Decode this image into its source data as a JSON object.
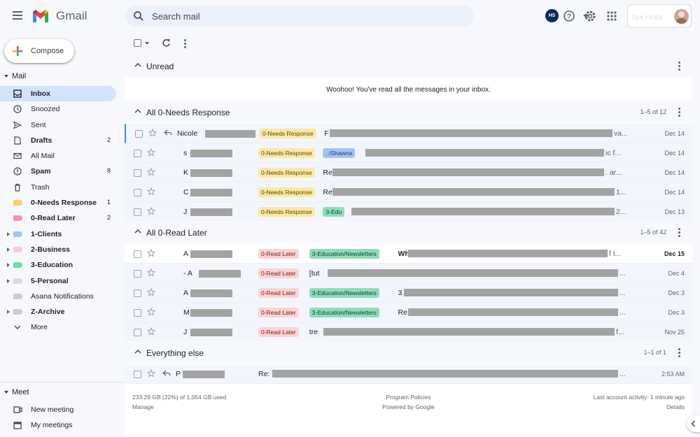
{
  "app": {
    "brand": "Gmail"
  },
  "search": {
    "placeholder": "Search mail",
    "value": ""
  },
  "header": {
    "account_initials": "HS",
    "workspace_logo": "lux+vita"
  },
  "compose": {
    "label": "Compose"
  },
  "sidebar": {
    "mail_section": "Mail",
    "items": [
      {
        "label": "Inbox",
        "count": "",
        "icon": "inbox-icon",
        "bold": true,
        "active": true
      },
      {
        "label": "Snoozed",
        "count": "",
        "icon": "clock-icon"
      },
      {
        "label": "Sent",
        "count": "",
        "icon": "send-icon"
      },
      {
        "label": "Drafts",
        "count": "2",
        "icon": "draft-icon",
        "bold": true
      },
      {
        "label": "All Mail",
        "count": "",
        "icon": "mail-icon"
      },
      {
        "label": "Spam",
        "count": "8",
        "icon": "spam-icon",
        "bold": true
      },
      {
        "label": "Trash",
        "count": "",
        "icon": "trash-icon"
      },
      {
        "label": "0-Needs Response",
        "count": "1",
        "icon": "label-icon",
        "color": "#fad165",
        "bold": true
      },
      {
        "label": "0-Read Later",
        "count": "2",
        "icon": "label-icon",
        "color": "#f691b2",
        "bold": true
      },
      {
        "label": "1-Clients",
        "count": "",
        "icon": "label-icon",
        "color": "#a4c2f4",
        "bold": true,
        "expandable": true
      },
      {
        "label": "2-Business",
        "count": "",
        "icon": "label-icon",
        "color": "#fbc8d9",
        "bold": true,
        "expandable": true
      },
      {
        "label": "3-Education",
        "count": "",
        "icon": "label-icon",
        "color": "#68dfa9",
        "bold": true,
        "expandable": true
      },
      {
        "label": "5-Personal",
        "count": "",
        "icon": "label-icon",
        "color": "#dadada",
        "bold": true,
        "expandable": true
      },
      {
        "label": "Asana Notifications",
        "count": "",
        "icon": "label-icon",
        "color": "#cccccc"
      },
      {
        "label": "Z-Archive",
        "count": "",
        "icon": "label-icon",
        "color": "#cccccc",
        "bold": true,
        "expandable": true
      },
      {
        "label": "More",
        "count": "",
        "icon": "chevron-down-icon"
      }
    ],
    "meet_section": "Meet",
    "meet_items": [
      {
        "label": "New meeting",
        "icon": "video-icon"
      },
      {
        "label": "My meetings",
        "icon": "calendar-icon"
      }
    ]
  },
  "sections": {
    "unread": {
      "title": "Unread",
      "empty_message": "Woohoo! You've read all the messages in your inbox."
    },
    "needs_response": {
      "title": "All 0-Needs Response",
      "count": "1–5 of 12"
    },
    "read_later": {
      "title": "All 0-Read Later",
      "count": "1–5 of 42"
    },
    "everything_else": {
      "title": "Everything else",
      "count": "1–1 of 1"
    }
  },
  "needs_response_rows": [
    {
      "sender": "Nicole",
      "reply": true,
      "labels": [
        {
          "text": "0-Needs Response",
          "cls": "nr"
        }
      ],
      "subj": "F",
      "tail": "va...",
      "date": "Dec 14"
    },
    {
      "sender": "s",
      "labels": [
        {
          "text": "0-Needs Response",
          "cls": "nr"
        },
        {
          "text": "../Shawna",
          "cls": "sh"
        }
      ],
      "subj": "",
      "tail": "ic f...",
      "date": "Dec 14"
    },
    {
      "sender": "K",
      "labels": [
        {
          "text": "0-Needs Response",
          "cls": "nr"
        }
      ],
      "subj": "Re",
      "tail": ". ar...",
      "date": "Dec 14"
    },
    {
      "sender": "C",
      "labels": [
        {
          "text": "0-Needs Response",
          "cls": "nr"
        }
      ],
      "subj": "Re",
      "tail": "1...",
      "date": "Dec 14"
    },
    {
      "sender": "J",
      "labels": [
        {
          "text": "0-Needs Response",
          "cls": "nr"
        },
        {
          "text": "3-Edu",
          "cls": "ed"
        }
      ],
      "subj": "",
      "tail": "2...",
      "date": "Dec 13"
    }
  ],
  "read_later_rows": [
    {
      "sender": "A",
      "unread": true,
      "labels": [
        {
          "text": "0-Read Later",
          "cls": "rl"
        },
        {
          "text": "3-Education/Newsletters",
          "cls": "ed"
        }
      ],
      "subj": "Wh",
      "tail": "f t...",
      "date": "Dec 15"
    },
    {
      "sender": "- A",
      "labels": [
        {
          "text": "0-Read Later",
          "cls": "rl"
        }
      ],
      "subj": "[tut",
      "tail": "...",
      "date": "Dec 4"
    },
    {
      "sender": "A",
      "labels": [
        {
          "text": "0-Read Later",
          "cls": "rl"
        },
        {
          "text": "3-Education/Newsletters",
          "cls": "ed"
        }
      ],
      "subj": "3",
      "tail": "...",
      "date": "Dec 3"
    },
    {
      "sender": "M",
      "labels": [
        {
          "text": "0-Read Later",
          "cls": "rl"
        },
        {
          "text": "3-Education/Newsletters",
          "cls": "ed"
        }
      ],
      "subj": "Re",
      "tail": "...",
      "date": "Dec 3"
    },
    {
      "sender": "J",
      "labels": [
        {
          "text": "0-Read Later",
          "cls": "rl"
        }
      ],
      "subj": "tre",
      "tail": "f...",
      "date": "Nov 25"
    }
  ],
  "everything_else_rows": [
    {
      "sender": "P",
      "reply": true,
      "labels": [],
      "subj": "Re:",
      "tail": "...",
      "date": "2:53 AM"
    }
  ],
  "footer": {
    "storage": "233.29 GB (22%) of 1,054 GB used",
    "manage": "Manage",
    "policies": "Program Policies",
    "powered": "Powered by Google",
    "activity": "Last account activity: 1 minute ago",
    "details": "Details"
  }
}
